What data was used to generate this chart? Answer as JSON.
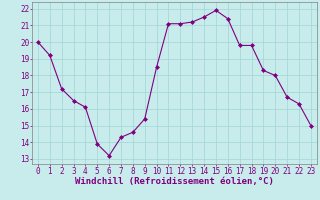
{
  "x": [
    0,
    1,
    2,
    3,
    4,
    5,
    6,
    7,
    8,
    9,
    10,
    11,
    12,
    13,
    14,
    15,
    16,
    17,
    18,
    19,
    20,
    21,
    22,
    23
  ],
  "y": [
    20.0,
    19.2,
    17.2,
    16.5,
    16.1,
    13.9,
    13.2,
    14.3,
    14.6,
    15.4,
    18.5,
    21.1,
    21.1,
    21.2,
    21.5,
    21.9,
    21.4,
    19.8,
    19.8,
    18.3,
    18.0,
    16.7,
    16.3,
    15.0
  ],
  "line_color": "#800080",
  "marker": "D",
  "marker_size": 2,
  "bg_color": "#c8ecec",
  "grid_color": "#a0d4d4",
  "xlabel": "Windchill (Refroidissement éolien,°C)",
  "xlabel_fontsize": 6.5,
  "yticks": [
    13,
    14,
    15,
    16,
    17,
    18,
    19,
    20,
    21,
    22
  ],
  "xticks": [
    0,
    1,
    2,
    3,
    4,
    5,
    6,
    7,
    8,
    9,
    10,
    11,
    12,
    13,
    14,
    15,
    16,
    17,
    18,
    19,
    20,
    21,
    22,
    23
  ],
  "ylim": [
    12.7,
    22.4
  ],
  "xlim": [
    -0.5,
    23.5
  ],
  "tick_fontsize": 5.5
}
